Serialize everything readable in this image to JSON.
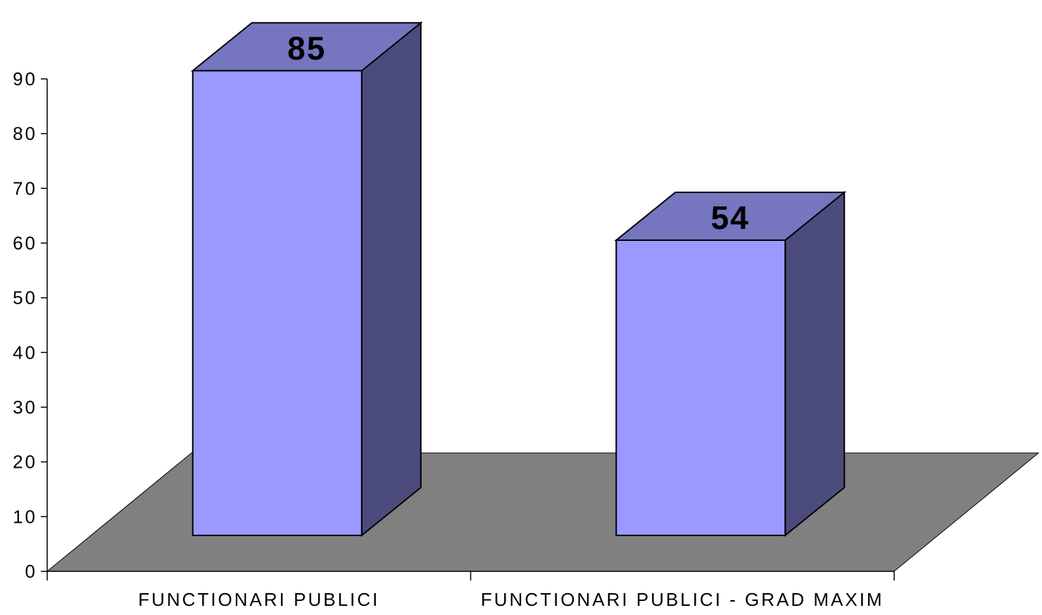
{
  "chart_data": {
    "type": "bar",
    "categories": [
      "FUNCTIONARI PUBLICI",
      "FUNCTIONARI PUBLICI - GRAD MAXIM"
    ],
    "values": [
      85,
      54
    ],
    "data_labels": [
      "85",
      "54"
    ],
    "yticks": [
      "0",
      "10",
      "20",
      "30",
      "40",
      "50",
      "60",
      "70",
      "80",
      "90"
    ],
    "ylim": [
      0,
      90
    ],
    "title": "",
    "xlabel": "",
    "ylabel": "",
    "grid": false,
    "three_d": true,
    "colors": {
      "bar_front": "#9999ff",
      "bar_top": "#7575c0",
      "bar_side": "#4b4b7d",
      "floor": "#808080"
    }
  }
}
